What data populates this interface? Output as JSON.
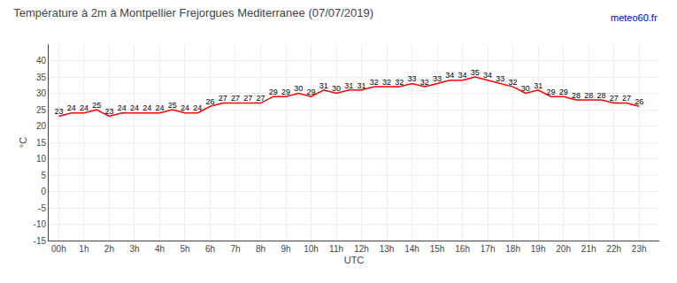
{
  "chart_data": {
    "type": "line",
    "title": "Température à 2m à Montpellier Frejorgues Mediterranee (07/07/2019)",
    "xlabel": "UTC",
    "ylabel": "°C",
    "annotations": [
      {
        "text": "meteo60.fr",
        "color": "#0000cc"
      }
    ],
    "x": [
      0,
      0.5,
      1,
      1.5,
      2,
      2.5,
      3,
      3.5,
      4,
      4.5,
      5,
      5.5,
      6,
      6.5,
      7,
      7.5,
      8,
      8.5,
      9,
      9.5,
      10,
      10.5,
      11,
      11.5,
      12,
      12.5,
      13,
      13.5,
      14,
      14.5,
      15,
      15.5,
      16,
      16.5,
      17,
      17.5,
      18,
      18.5,
      19,
      19.5,
      20,
      20.5,
      21,
      21.5,
      22,
      22.5,
      23
    ],
    "values": [
      23,
      24,
      24,
      25,
      23,
      24,
      24,
      24,
      24,
      25,
      24,
      24,
      26,
      27,
      27,
      27,
      27,
      29,
      29,
      30,
      29,
      31,
      30,
      31,
      31,
      32,
      32,
      32,
      33,
      32,
      33,
      34,
      34,
      35,
      34,
      33,
      32,
      30,
      31,
      29,
      29,
      28,
      28,
      28,
      27,
      27,
      26
    ],
    "color": "#ff0000",
    "xlim": [
      -0.4,
      23.8
    ],
    "xticks": [
      {
        "value": 0,
        "label": "00h"
      },
      {
        "value": 1,
        "label": "1h"
      },
      {
        "value": 2,
        "label": "2h"
      },
      {
        "value": 3,
        "label": "3h"
      },
      {
        "value": 4,
        "label": "4h"
      },
      {
        "value": 5,
        "label": "5h"
      },
      {
        "value": 6,
        "label": "6h"
      },
      {
        "value": 7,
        "label": "7h"
      },
      {
        "value": 8,
        "label": "8h"
      },
      {
        "value": 9,
        "label": "9h"
      },
      {
        "value": 10,
        "label": "10h"
      },
      {
        "value": 11,
        "label": "11h"
      },
      {
        "value": 12,
        "label": "12h"
      },
      {
        "value": 13,
        "label": "13h"
      },
      {
        "value": 14,
        "label": "14h"
      },
      {
        "value": 15,
        "label": "15h"
      },
      {
        "value": 16,
        "label": "16h"
      },
      {
        "value": 17,
        "label": "17h"
      },
      {
        "value": 18,
        "label": "18h"
      },
      {
        "value": 19,
        "label": "19h"
      },
      {
        "value": 20,
        "label": "20h"
      },
      {
        "value": 21,
        "label": "21h"
      },
      {
        "value": 22,
        "label": "22h"
      },
      {
        "value": 23,
        "label": "23h"
      }
    ],
    "ylim": [
      -15,
      45
    ],
    "yticks": [
      -15,
      -10,
      -5,
      0,
      5,
      10,
      15,
      20,
      25,
      30,
      35,
      40
    ],
    "grid": true,
    "data_labels": true
  }
}
